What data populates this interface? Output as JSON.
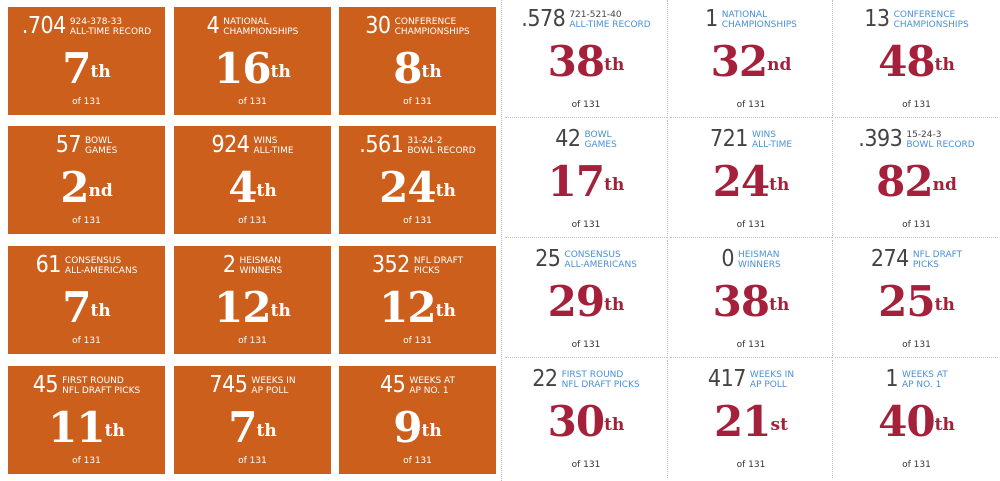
{
  "left_team": {
    "color": "#cc5f1c",
    "cards": [
      {
        "value": ".704",
        "sub": "924-378-33",
        "label": [
          "ALL-TIME RECORD"
        ],
        "rank": "7",
        "suffix": "th",
        "of": "of 131"
      },
      {
        "value": "4",
        "sub": "",
        "label": [
          "NATIONAL",
          "CHAMPIONSHIPS"
        ],
        "rank": "16",
        "suffix": "th",
        "of": "of 131"
      },
      {
        "value": "30",
        "sub": "",
        "label": [
          "CONFERENCE",
          "CHAMPIONSHIPS"
        ],
        "rank": "8",
        "suffix": "th",
        "of": "of 131"
      },
      {
        "value": "57",
        "sub": "",
        "label": [
          "BOWL",
          "GAMES"
        ],
        "rank": "2",
        "suffix": "nd",
        "of": "of 131"
      },
      {
        "value": "924",
        "sub": "",
        "label": [
          "WINS",
          "ALL-TIME"
        ],
        "rank": "4",
        "suffix": "th",
        "of": "of 131"
      },
      {
        "value": ".561",
        "sub": "31-24-2",
        "label": [
          "BOWL RECORD"
        ],
        "rank": "24",
        "suffix": "th",
        "of": "of 131"
      },
      {
        "value": "61",
        "sub": "",
        "label": [
          "CONSENSUS",
          "ALL-AMERICANS"
        ],
        "rank": "7",
        "suffix": "th",
        "of": "of 131"
      },
      {
        "value": "2",
        "sub": "",
        "label": [
          "HEISMAN",
          "WINNERS"
        ],
        "rank": "12",
        "suffix": "th",
        "of": "of 131"
      },
      {
        "value": "352",
        "sub": "",
        "label": [
          "NFL DRAFT",
          "PICKS"
        ],
        "rank": "12",
        "suffix": "th",
        "of": "of 131"
      },
      {
        "value": "45",
        "sub": "",
        "label": [
          "FIRST ROUND",
          "NFL DRAFT PICKS"
        ],
        "rank": "11",
        "suffix": "th",
        "of": "of 131"
      },
      {
        "value": "745",
        "sub": "",
        "label": [
          "WEEKS IN",
          "AP POLL"
        ],
        "rank": "7",
        "suffix": "th",
        "of": "of 131"
      },
      {
        "value": "45",
        "sub": "",
        "label": [
          "WEEKS AT",
          "AP NO. 1"
        ],
        "rank": "9",
        "suffix": "th",
        "of": "of 131"
      }
    ]
  },
  "right_team": {
    "value_color": "#444444",
    "label_color": "#4a90d9",
    "rank_color": "#a5203a",
    "cards": [
      {
        "value": ".578",
        "sub": "721-521-40",
        "label": [
          "ALL-TIME RECORD"
        ],
        "rank": "38",
        "suffix": "th",
        "of": "of 131"
      },
      {
        "value": "1",
        "sub": "",
        "label": [
          "NATIONAL",
          "CHAMPIONSHIPS"
        ],
        "rank": "32",
        "suffix": "nd",
        "of": "of 131"
      },
      {
        "value": "13",
        "sub": "",
        "label": [
          "CONFERENCE",
          "CHAMPIONSHIPS"
        ],
        "rank": "48",
        "suffix": "th",
        "of": "of 131"
      },
      {
        "value": "42",
        "sub": "",
        "label": [
          "BOWL",
          "GAMES"
        ],
        "rank": "17",
        "suffix": "th",
        "of": "of 131"
      },
      {
        "value": "721",
        "sub": "",
        "label": [
          "WINS",
          "ALL-TIME"
        ],
        "rank": "24",
        "suffix": "th",
        "of": "of 131"
      },
      {
        "value": ".393",
        "sub": "15-24-3",
        "label": [
          "BOWL RECORD"
        ],
        "rank": "82",
        "suffix": "nd",
        "of": "of 131"
      },
      {
        "value": "25",
        "sub": "",
        "label": [
          "CONSENSUS",
          "ALL-AMERICANS"
        ],
        "rank": "29",
        "suffix": "th",
        "of": "of 131"
      },
      {
        "value": "0",
        "sub": "",
        "label": [
          "HEISMAN",
          "WINNERS"
        ],
        "rank": "38",
        "suffix": "th",
        "of": "of 131"
      },
      {
        "value": "274",
        "sub": "",
        "label": [
          "NFL DRAFT",
          "PICKS"
        ],
        "rank": "25",
        "suffix": "th",
        "of": "of 131"
      },
      {
        "value": "22",
        "sub": "",
        "label": [
          "FIRST ROUND",
          "NFL DRAFT PICKS"
        ],
        "rank": "30",
        "suffix": "th",
        "of": "of 131"
      },
      {
        "value": "417",
        "sub": "",
        "label": [
          "WEEKS IN",
          "AP POLL"
        ],
        "rank": "21",
        "suffix": "st",
        "of": "of 131"
      },
      {
        "value": "1",
        "sub": "",
        "label": [
          "WEEKS AT",
          "AP NO. 1"
        ],
        "rank": "40",
        "suffix": "th",
        "of": "of 131"
      }
    ]
  }
}
